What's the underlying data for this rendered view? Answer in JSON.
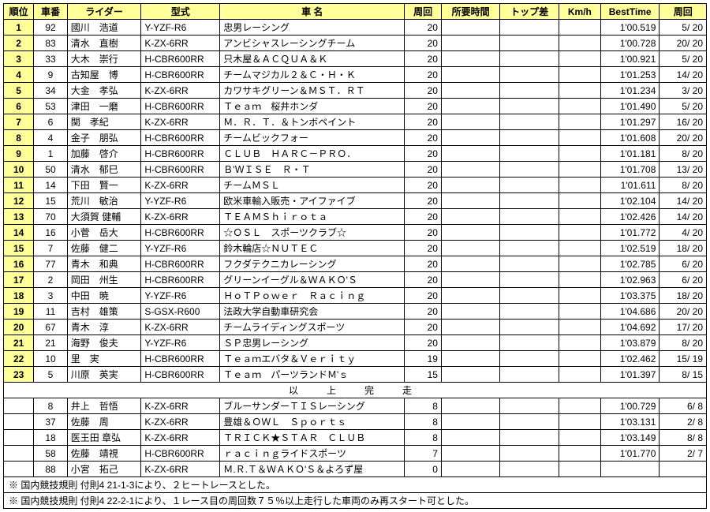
{
  "headers": [
    "順位",
    "車番",
    "ライダー",
    "型式",
    "車 名",
    "周回",
    "所要時間",
    "トップ差",
    "Km/h",
    "BestTime",
    "周回"
  ],
  "rows": [
    {
      "rank": "1",
      "num": "92",
      "rider": "國川　浩道",
      "model": "Y-YZF-R6",
      "team": "忠男レーシング",
      "laps": "20",
      "time": "",
      "gap": "",
      "kmh": "",
      "best": "1'00.519",
      "lap": "5/ 20"
    },
    {
      "rank": "2",
      "num": "83",
      "rider": "清水　直樹",
      "model": "K-ZX-6RR",
      "team": "アンビシャスレーシングチーム",
      "laps": "20",
      "time": "",
      "gap": "",
      "kmh": "",
      "best": "1'00.728",
      "lap": "20/ 20"
    },
    {
      "rank": "3",
      "num": "33",
      "rider": "大木　崇行",
      "model": "H-CBR600RR",
      "team": "只木屋＆ＡＣＱＵＡ＆Ｋ",
      "laps": "20",
      "time": "",
      "gap": "",
      "kmh": "",
      "best": "1'00.921",
      "lap": "5/ 20"
    },
    {
      "rank": "4",
      "num": "9",
      "rider": "古知屋　博",
      "model": "H-CBR600RR",
      "team": "チームマジカル２＆Ｃ・Ｈ・Ｋ",
      "laps": "20",
      "time": "",
      "gap": "",
      "kmh": "",
      "best": "1'01.253",
      "lap": "14/ 20"
    },
    {
      "rank": "5",
      "num": "34",
      "rider": "大金　孝弘",
      "model": "K-ZX-6RR",
      "team": "カワサキグリーン＆ＭＳＴ．ＲＴ",
      "laps": "20",
      "time": "",
      "gap": "",
      "kmh": "",
      "best": "1'01.234",
      "lap": "3/ 20"
    },
    {
      "rank": "6",
      "num": "53",
      "rider": "津田　一磨",
      "model": "H-CBR600RR",
      "team": "Ｔｅａｍ　桜井ホンダ",
      "laps": "20",
      "time": "",
      "gap": "",
      "kmh": "",
      "best": "1'01.490",
      "lap": "5/ 20"
    },
    {
      "rank": "7",
      "num": "6",
      "rider": "関　孝紀",
      "model": "K-ZX-6RR",
      "team": "Ｍ．Ｒ．Ｔ．＆トンボペイント",
      "laps": "20",
      "time": "",
      "gap": "",
      "kmh": "",
      "best": "1'01.297",
      "lap": "16/ 20"
    },
    {
      "rank": "8",
      "num": "4",
      "rider": "金子　朋弘",
      "model": "H-CBR600RR",
      "team": "チームビックフォー",
      "laps": "20",
      "time": "",
      "gap": "",
      "kmh": "",
      "best": "1'01.608",
      "lap": "20/ 20"
    },
    {
      "rank": "9",
      "num": "1",
      "rider": "加藤　啓介",
      "model": "H-CBR600RR",
      "team": "ＣＬＵＢ　ＨＡＲＣ－ＰＲＯ．",
      "laps": "20",
      "time": "",
      "gap": "",
      "kmh": "",
      "best": "1'01.181",
      "lap": "8/ 20"
    },
    {
      "rank": "10",
      "num": "50",
      "rider": "清水　郁巳",
      "model": "H-CBR600RR",
      "team": "Ｂ'ＷＩＳＥ　Ｒ・Ｔ",
      "laps": "20",
      "time": "",
      "gap": "",
      "kmh": "",
      "best": "1'01.708",
      "lap": "13/ 20"
    },
    {
      "rank": "11",
      "num": "14",
      "rider": "下田　賢一",
      "model": "K-ZX-6RR",
      "team": "チームＭＳＬ",
      "laps": "20",
      "time": "",
      "gap": "",
      "kmh": "",
      "best": "1'01.611",
      "lap": "8/ 20"
    },
    {
      "rank": "12",
      "num": "15",
      "rider": "荒川　敏治",
      "model": "Y-YZF-R6",
      "team": "欧米車輸入販売・アイファイブ",
      "laps": "20",
      "time": "",
      "gap": "",
      "kmh": "",
      "best": "1'02.104",
      "lap": "14/ 20"
    },
    {
      "rank": "13",
      "num": "70",
      "rider": "大須賀 健輔",
      "model": "K-ZX-6RR",
      "team": "ＴＥＡＭＳｈｉｒｏｔａ",
      "laps": "20",
      "time": "",
      "gap": "",
      "kmh": "",
      "best": "1'02.426",
      "lap": "14/ 20"
    },
    {
      "rank": "14",
      "num": "16",
      "rider": "小菅　岳大",
      "model": "H-CBR600RR",
      "team": "☆ＯＳＬ　スポーツクラブ☆",
      "laps": "20",
      "time": "",
      "gap": "",
      "kmh": "",
      "best": "1'01.772",
      "lap": "4/ 20"
    },
    {
      "rank": "15",
      "num": "7",
      "rider": "佐藤　健二",
      "model": "Y-YZF-R6",
      "team": "鈴木輪店☆ＮＵＴＥＣ",
      "laps": "20",
      "time": "",
      "gap": "",
      "kmh": "",
      "best": "1'02.519",
      "lap": "18/ 20"
    },
    {
      "rank": "16",
      "num": "77",
      "rider": "青木　和典",
      "model": "H-CBR600RR",
      "team": "フクダテクニカレーシング",
      "laps": "20",
      "time": "",
      "gap": "",
      "kmh": "",
      "best": "1'02.785",
      "lap": "6/ 20"
    },
    {
      "rank": "17",
      "num": "2",
      "rider": "岡田　州生",
      "model": "H-CBR600RR",
      "team": "グリーンイーグル＆ＷＡＫＯ'Ｓ",
      "laps": "20",
      "time": "",
      "gap": "",
      "kmh": "",
      "best": "1'02.963",
      "lap": "6/ 20"
    },
    {
      "rank": "18",
      "num": "3",
      "rider": "中田　暁",
      "model": "Y-YZF-R6",
      "team": "ＨｏＴＰｏｗｅｒ　Ｒａｃｉｎｇ",
      "laps": "20",
      "time": "",
      "gap": "",
      "kmh": "",
      "best": "1'03.375",
      "lap": "18/ 20"
    },
    {
      "rank": "19",
      "num": "11",
      "rider": "吉村　雄策",
      "model": "S-GSX-R600",
      "team": "法政大学自動車研究会",
      "laps": "20",
      "time": "",
      "gap": "",
      "kmh": "",
      "best": "1'04.686",
      "lap": "20/ 20"
    },
    {
      "rank": "20",
      "num": "67",
      "rider": "青木　淳",
      "model": "K-ZX-6RR",
      "team": "チームライディングスポーツ",
      "laps": "20",
      "time": "",
      "gap": "",
      "kmh": "",
      "best": "1'04.692",
      "lap": "17/ 20"
    },
    {
      "rank": "21",
      "num": "21",
      "rider": "海野　俊夫",
      "model": "Y-YZF-R6",
      "team": "ＳＰ忠男レーシング",
      "laps": "20",
      "time": "",
      "gap": "",
      "kmh": "",
      "best": "1'03.879",
      "lap": "8/ 20"
    },
    {
      "rank": "22",
      "num": "10",
      "rider": "里　実",
      "model": "H-CBR600RR",
      "team": "Ｔｅａｍエバタ＆Ｖｅｒｉｔｙ",
      "laps": "19",
      "time": "",
      "gap": "",
      "kmh": "",
      "best": "1'02.462",
      "lap": "15/ 19"
    },
    {
      "rank": "23",
      "num": "5",
      "rider": "川原　英実",
      "model": "H-CBR600RR",
      "team": "Ｔｅａｍ　パーツランドＭ'ｓ",
      "laps": "15",
      "time": "",
      "gap": "",
      "kmh": "",
      "best": "1'01.397",
      "lap": "8/ 15"
    }
  ],
  "mid": "以　上　完　走",
  "rows2": [
    {
      "rank": "",
      "num": "8",
      "rider": "井上　哲悟",
      "model": "K-ZX-6RR",
      "team": "ブルーサンダーＴＩＳレーシング",
      "laps": "8",
      "time": "",
      "gap": "",
      "kmh": "",
      "best": "1'00.729",
      "lap": "6/  8"
    },
    {
      "rank": "",
      "num": "37",
      "rider": "佐藤　周",
      "model": "K-ZX-6RR",
      "team": "豊雄＆ＯＷＬ　Ｓｐｏｒｔｓ",
      "laps": "8",
      "time": "",
      "gap": "",
      "kmh": "",
      "best": "1'03.131",
      "lap": "2/  8"
    },
    {
      "rank": "",
      "num": "18",
      "rider": "医王田 章弘",
      "model": "K-ZX-6RR",
      "team": "ＴＲＩＣＫ★ＳＴＡＲ　ＣＬＵＢ",
      "laps": "8",
      "time": "",
      "gap": "",
      "kmh": "",
      "best": "1'03.149",
      "lap": "8/  8"
    },
    {
      "rank": "",
      "num": "58",
      "rider": "佐藤　靖視",
      "model": "H-CBR600RR",
      "team": "ｒａｃｉｎｇライドスポーツ",
      "laps": "7",
      "time": "",
      "gap": "",
      "kmh": "",
      "best": "1'01.770",
      "lap": "2/  7"
    },
    {
      "rank": "",
      "num": "88",
      "rider": "小宮　拓己",
      "model": "K-ZX-6RR",
      "team": "Ｍ.Ｒ.Ｔ＆ＷＡＫＯ'Ｓ＆よろず屋",
      "laps": "0",
      "time": "",
      "gap": "",
      "kmh": "",
      "best": "",
      "lap": ""
    }
  ],
  "notes": [
    "※ 国内競技規則 付則4 21-1-3により、２ヒートレースとした。",
    "※ 国内競技規則 付則4 22-2-1により、１レース目の周回数７５％以上走行した車両のみ再スタート可とした。"
  ]
}
